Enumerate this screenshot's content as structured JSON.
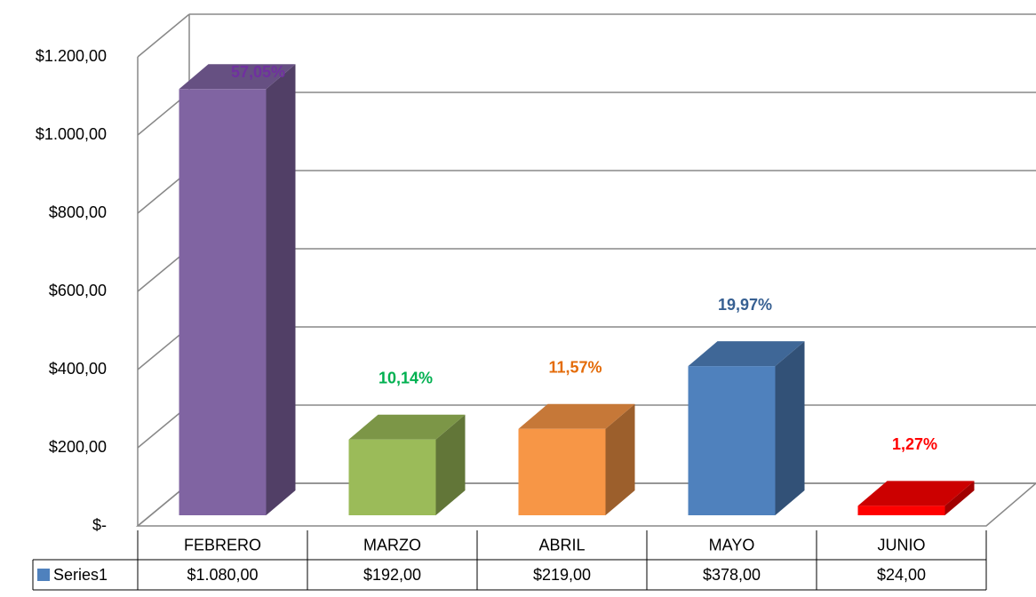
{
  "chart_data": {
    "type": "bar3d",
    "categories": [
      "FEBRERO",
      "MARZO",
      "ABRIL",
      "MAYO",
      "JUNIO"
    ],
    "series": [
      {
        "name": "Series1",
        "color": "#4f81bd",
        "values": [
          1080,
          192,
          219,
          378,
          24
        ],
        "value_labels": [
          "$1.080,00",
          "$192,00",
          "$219,00",
          "$378,00",
          "$24,00"
        ],
        "colors": [
          "#8064a2",
          "#9bbb59",
          "#f79646",
          "#4f81bd",
          "#ff0000"
        ],
        "percent_labels": [
          "57,05%",
          "10,14%",
          "11,57%",
          "19,97%",
          "1,27%"
        ],
        "percent_label_colors": [
          "#7030a0",
          "#00b050",
          "#e46c0a",
          "#376092",
          "#ff0000"
        ]
      }
    ],
    "ylim": [
      0,
      1200
    ],
    "yticks": [
      {
        "value": 0,
        "label": "$-"
      },
      {
        "value": 200,
        "label": "$200,00"
      },
      {
        "value": 400,
        "label": "$400,00"
      },
      {
        "value": 600,
        "label": "$600,00"
      },
      {
        "value": 800,
        "label": "$800,00"
      },
      {
        "value": 1000,
        "label": "$1.000,00"
      },
      {
        "value": 1200,
        "label": "$1.200,00"
      }
    ],
    "grid": true
  }
}
